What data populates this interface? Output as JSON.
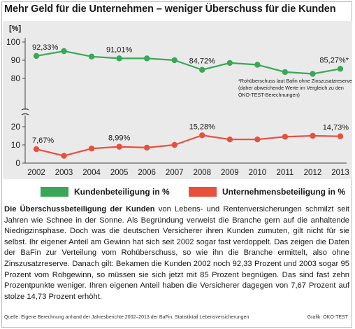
{
  "title": "Mehr Geld für die Unternehmen – weniger Überschuss für die Kunden",
  "unit_label": "[%]",
  "chart_data": {
    "type": "line",
    "x": [
      "2002",
      "2003",
      "2004",
      "2005",
      "2006",
      "2007",
      "2008",
      "2009",
      "2010",
      "2011",
      "2012",
      "2013"
    ],
    "series": [
      {
        "name": "Kundenbeteiligung in %",
        "color": "#3aa757",
        "values": [
          92.33,
          95,
          92,
          91.01,
          91,
          90,
          84.72,
          88.5,
          87.5,
          83.5,
          82.5,
          85.27
        ]
      },
      {
        "name": "Unternehmensbeteiligung in %",
        "color": "#e8503e",
        "values": [
          7.67,
          4,
          8,
          8.99,
          8.5,
          10,
          15.28,
          13,
          13,
          14.5,
          15,
          14.73
        ]
      }
    ],
    "upper_axis": {
      "ylim": [
        80,
        100
      ],
      "ticks": [
        "80",
        "90",
        "100"
      ]
    },
    "lower_axis": {
      "ylim": [
        0,
        20
      ],
      "ticks": [
        "0",
        "10",
        "20"
      ]
    },
    "axis_break": true,
    "grid": false,
    "data_labels": [
      {
        "series": 0,
        "index": 0,
        "text": "92,33%"
      },
      {
        "series": 0,
        "index": 3,
        "text": "91,01%"
      },
      {
        "series": 0,
        "index": 6,
        "text": "84,72%"
      },
      {
        "series": 0,
        "index": 11,
        "text": "85,27%*"
      },
      {
        "series": 1,
        "index": 0,
        "text": "7,67%"
      },
      {
        "series": 1,
        "index": 3,
        "text": "8,99%"
      },
      {
        "series": 1,
        "index": 6,
        "text": "15,28%"
      },
      {
        "series": 1,
        "index": 11,
        "text": "14,73%"
      }
    ],
    "note": "*Rohüberschuss laut Bafin ohne Zinszusatzreserve (daher abweichende Werte im Vergleich zu den ÖKO-TEST-Berechnungen)"
  },
  "legend": {
    "kunden": "Kundenbeteiligung in %",
    "unternehmen": "Unternehmensbeteiligung in %"
  },
  "body": {
    "lead": "Die Überschussbeteiligung der Kunden",
    "text": " von Lebens- und Rentenversicherungen schmilzt seit Jahren wie Schnee in der Sonne. Als Begründung verweist die Branche gern auf die anhaltende Niedrigzinsphase. Doch was die deutschen Versicherer ihren Kunden zumuten, gilt nicht für sie selbst. Ihr eigener Anteil am Gewinn hat sich seit 2002 sogar fast verdoppelt. Das zeigen die Daten der BaFin zur Verteilung vom Rohüberschuss, so wie ihn die Branche ermittelt, also ohne Zinszusatzreserve. Danach gilt: Bekamen die Kunden 2002 noch 92,33 Prozent und 2003 sogar 95 Prozent vom Rohgewinn, so müssen sie sich jetzt mit 85 Prozent begnügen. Das sind fast zehn Prozentpunkte weniger. Ihren eigenen Anteil haben die Versicherer dagegen von 7,67 Prozent auf stolze 14,73 Prozent erhöht."
  },
  "source": "Quelle: Eigene Berechnung anhand der Jahresberichte 2002–2013 der BaFin, Statistiktail Lebensversicherungen",
  "credit": "Grafik: ÖKO-TEST"
}
